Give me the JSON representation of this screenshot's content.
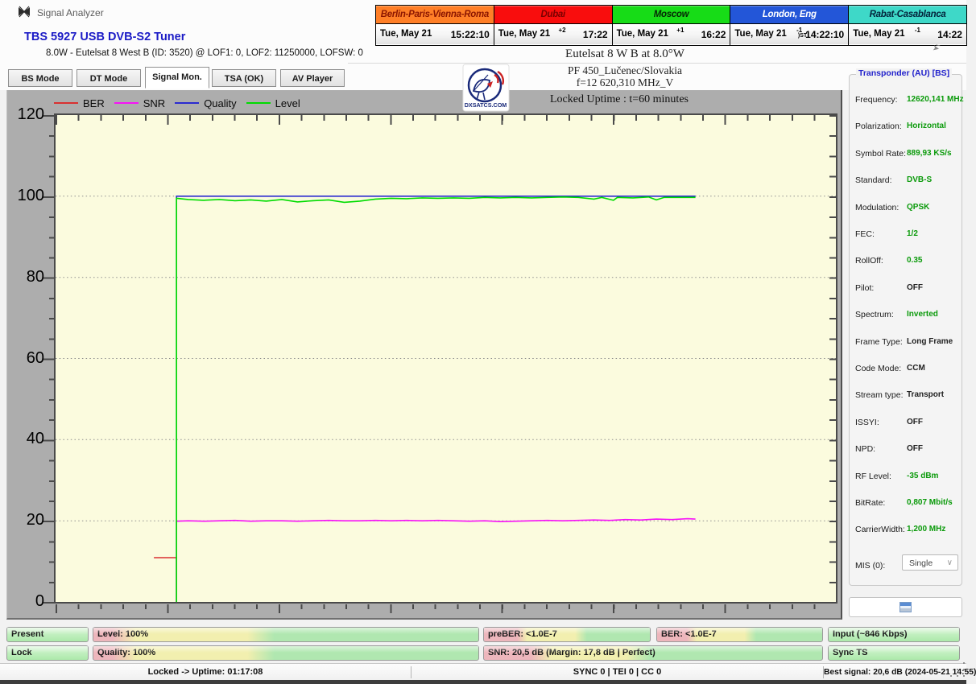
{
  "window": {
    "title": "Signal Analyzer"
  },
  "clocks": [
    {
      "city": "Berlin-Paris-Vienna-Roma",
      "date": "Tue, May 21",
      "utc_offset": "",
      "dst_note": "",
      "time": "15:22:10",
      "header_bg": "#FF7F27",
      "header_fg": "#8B1500"
    },
    {
      "city": "Dubai",
      "date": "Tue, May 21",
      "utc_offset": "+2",
      "dst_note": "",
      "time": "17:22",
      "header_bg": "#F90D0D",
      "header_fg": "#7B0000"
    },
    {
      "city": "Moscow",
      "date": "Tue, May 21",
      "utc_offset": "+1",
      "dst_note": "",
      "time": "16:22",
      "header_bg": "#17DC17",
      "header_fg": "#062806"
    },
    {
      "city": "London, Eng",
      "date": "Tue, May 21",
      "utc_offset": "-1",
      "dst_note": ")ST",
      "time": "14:22:10",
      "header_bg": "#2356D8",
      "header_fg": "#FFFFFF"
    },
    {
      "city": "Rabat-Casablanca",
      "date": "Tue, May 21",
      "utc_offset": "-1",
      "dst_note": "",
      "time": "14:22",
      "header_bg": "#3ED8C8",
      "header_fg": "#03233B"
    }
  ],
  "tuner": {
    "name": "TBS 5927 USB DVB-S2 Tuner",
    "details": "8.0W - Eutelsat 8 West B (ID: 3520) @ LOF1: 0, LOF2: 11250000, LOFSW: 0"
  },
  "header": {
    "satellite": "Eutelsat 8 W B at 8.0°W",
    "site": "PF 450_Lučenec/Slovakia",
    "frequency": "f=12 620,310 MHz_V",
    "uptime": "Locked Uptime : t=60 minutes"
  },
  "logo": {
    "text": "DXSATCS.COM",
    "icon": "satellite-dish-logo"
  },
  "tabs": [
    {
      "label": "BS Mode",
      "active": false
    },
    {
      "label": "DT Mode",
      "active": false
    },
    {
      "label": "Signal Mon.",
      "active": true
    },
    {
      "label": "TSA (OK)",
      "active": false
    },
    {
      "label": "AV Player",
      "active": false
    }
  ],
  "chart_data": {
    "type": "line",
    "title": "",
    "xlabel": "",
    "ylabel": "",
    "ylim": [
      0,
      120
    ],
    "yticks": [
      0,
      20,
      40,
      60,
      80,
      100,
      120
    ],
    "grid_y": [
      20,
      40,
      60,
      80,
      100
    ],
    "grid_style": "dotted",
    "x_range_pct": [
      0,
      100
    ],
    "legend_position": "top-left",
    "plot_bg": "#FBFBDE",
    "legend": [
      "BER",
      "SNR",
      "Quality",
      "Level"
    ],
    "colors": {
      "BER": "#D93030",
      "SNR": "#F712F7",
      "Quality": "#2B2BD0",
      "Level": "#00DC00"
    },
    "series": [
      {
        "name": "BER",
        "points": [
          [
            12.6,
            10.9
          ],
          [
            15.5,
            10.9
          ],
          [
            15.5,
            0
          ]
        ]
      },
      {
        "name": "SNR",
        "points": [
          [
            15.5,
            0
          ],
          [
            15.5,
            19.9
          ],
          [
            17,
            20.0
          ],
          [
            19,
            19.9
          ],
          [
            21,
            20.0
          ],
          [
            23,
            20.1
          ],
          [
            25,
            19.9
          ],
          [
            27,
            20.0
          ],
          [
            29,
            20.0
          ],
          [
            31,
            19.9
          ],
          [
            33,
            20.0
          ],
          [
            35,
            20.1
          ],
          [
            37,
            20.0
          ],
          [
            39,
            20.0
          ],
          [
            41,
            20.1
          ],
          [
            43,
            20.0
          ],
          [
            45,
            20.1
          ],
          [
            47,
            20.0
          ],
          [
            49,
            20.1
          ],
          [
            51,
            20.0
          ],
          [
            53,
            19.9
          ],
          [
            55,
            20.0
          ],
          [
            57,
            19.8
          ],
          [
            59,
            19.9
          ],
          [
            61,
            20.0
          ],
          [
            63,
            20.1
          ],
          [
            65,
            20.0
          ],
          [
            67,
            20.1
          ],
          [
            69,
            20.2
          ],
          [
            71,
            20.1
          ],
          [
            73,
            20.3
          ],
          [
            75,
            20.2
          ],
          [
            77,
            20.4
          ],
          [
            79,
            20.3
          ],
          [
            81,
            20.5
          ],
          [
            82,
            20.4
          ]
        ]
      },
      {
        "name": "Quality",
        "points": [
          [
            15.5,
            0
          ],
          [
            15.5,
            100
          ],
          [
            82,
            100
          ]
        ]
      },
      {
        "name": "Level",
        "points": [
          [
            15.5,
            0
          ],
          [
            15.5,
            99.5
          ],
          [
            17,
            99.2
          ],
          [
            19,
            99.0
          ],
          [
            21,
            99.2
          ],
          [
            23,
            98.9
          ],
          [
            25,
            99.1
          ],
          [
            27,
            98.8
          ],
          [
            29,
            99.2
          ],
          [
            31,
            98.6
          ],
          [
            33,
            98.9
          ],
          [
            35,
            99.1
          ],
          [
            37,
            98.5
          ],
          [
            39,
            98.8
          ],
          [
            41,
            99.3
          ],
          [
            43,
            99.5
          ],
          [
            45,
            99.4
          ],
          [
            47,
            99.6
          ],
          [
            49,
            99.5
          ],
          [
            51,
            99.6
          ],
          [
            53,
            99.5
          ],
          [
            55,
            99.7
          ],
          [
            57,
            99.6
          ],
          [
            59,
            99.7
          ],
          [
            61,
            99.6
          ],
          [
            63,
            99.7
          ],
          [
            65,
            99.8
          ],
          [
            67,
            99.7
          ],
          [
            69,
            99.3
          ],
          [
            70,
            99.7
          ],
          [
            71.5,
            99.0
          ],
          [
            72,
            99.7
          ],
          [
            74,
            99.6
          ],
          [
            76,
            99.8
          ],
          [
            77,
            99.1
          ],
          [
            78,
            99.7
          ],
          [
            80,
            99.7
          ],
          [
            82,
            99.7
          ]
        ]
      }
    ]
  },
  "transponder": {
    "legend": "Transponder (AU) [BS]",
    "rows": [
      {
        "label": "Frequency:",
        "value": "12620,141 MHz",
        "tone": "g"
      },
      {
        "label": "Polarization:",
        "value": "Horizontal",
        "tone": "g"
      },
      {
        "label": "Symbol Rate:",
        "value": "889,93 KS/s",
        "tone": "g"
      },
      {
        "label": "Standard:",
        "value": "DVB-S",
        "tone": "g"
      },
      {
        "label": "Modulation:",
        "value": "QPSK",
        "tone": "g"
      },
      {
        "label": "FEC:",
        "value": "1/2",
        "tone": "g"
      },
      {
        "label": "RollOff:",
        "value": "0.35",
        "tone": "g"
      },
      {
        "label": "Pilot:",
        "value": "OFF",
        "tone": "k"
      },
      {
        "label": "Spectrum:",
        "value": "Inverted",
        "tone": "g"
      },
      {
        "label": "Frame Type:",
        "value": "Long Frame",
        "tone": "k"
      },
      {
        "label": "Code Mode:",
        "value": "CCM",
        "tone": "k"
      },
      {
        "label": "Stream type:",
        "value": "Transport",
        "tone": "k"
      },
      {
        "label": "ISSYI:",
        "value": "OFF",
        "tone": "k"
      },
      {
        "label": "NPD:",
        "value": "OFF",
        "tone": "k"
      },
      {
        "label": "RF Level:",
        "value": "-35 dBm",
        "tone": "g"
      },
      {
        "label": "BitRate:",
        "value": "0,807 Mbit/s",
        "tone": "g"
      },
      {
        "label": "CarrierWidth:",
        "value": "1,200 MHz",
        "tone": "g"
      }
    ],
    "mis": {
      "label": "MIS (0):",
      "value": "Single"
    },
    "list_button_icon": "transport-list-icon"
  },
  "meters": {
    "row1": [
      {
        "label": "Present",
        "style": "green"
      },
      {
        "label": "Level: 100%",
        "style": "tri",
        "stops": [
          5,
          40
        ]
      },
      {
        "label": "preBER: <1.0E-7",
        "style": "tri",
        "stops": [
          20,
          55
        ]
      },
      {
        "label": "BER: <1.0E-7",
        "style": "tri",
        "stops": [
          18,
          53
        ]
      },
      {
        "label": "Input (~846 Kbps)",
        "style": "green"
      }
    ],
    "row2": [
      {
        "label": "Lock",
        "style": "green"
      },
      {
        "label": "Quality: 100%",
        "style": "tri",
        "stops": [
          5,
          40
        ]
      },
      {
        "label": "SNR: 20,5 dB (Margin: 17,8 dB | Perfect)",
        "style": "tri",
        "stops": [
          14,
          42
        ]
      },
      {
        "label": "Sync TS",
        "style": "green"
      }
    ]
  },
  "statusbar": {
    "uptime": "Locked -> Uptime: 01:17:08",
    "counters": "SYNC 0 | TEI 0 | CC 0",
    "best_signal": "Best signal: 20,6 dB (2024-05-21 14:55)"
  }
}
